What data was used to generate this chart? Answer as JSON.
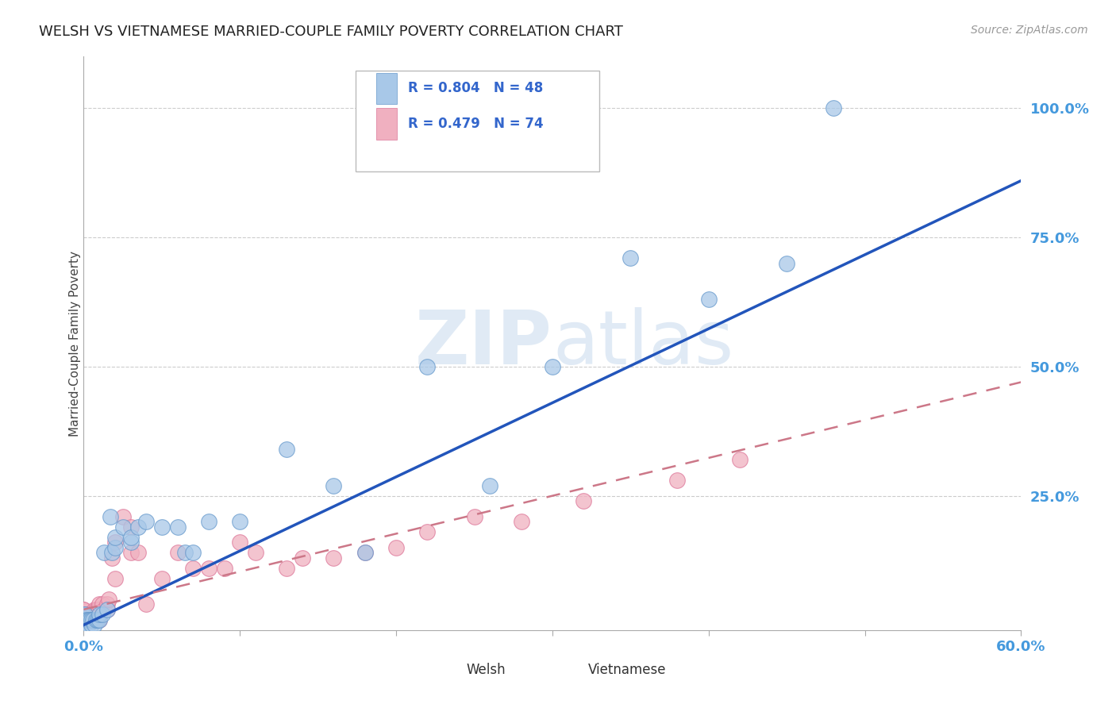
{
  "title": "WELSH VS VIETNAMESE MARRIED-COUPLE FAMILY POVERTY CORRELATION CHART",
  "source": "Source: ZipAtlas.com",
  "ylabel": "Married-Couple Family Poverty",
  "welsh_R": 0.804,
  "welsh_N": 48,
  "viet_R": 0.479,
  "viet_N": 74,
  "welsh_color": "#a8c8e8",
  "welsh_edge": "#6699cc",
  "viet_color": "#f0b0c0",
  "viet_edge": "#dd7799",
  "trend_blue": "#2255bb",
  "trend_pink": "#cc7788",
  "watermark_color": "#ccddef",
  "background_color": "#ffffff",
  "xlim": [
    0.0,
    0.6
  ],
  "ylim": [
    -0.01,
    1.1
  ],
  "welsh_x": [
    0.0,
    0.0,
    0.0,
    0.0,
    0.001,
    0.001,
    0.001,
    0.002,
    0.002,
    0.003,
    0.003,
    0.004,
    0.005,
    0.005,
    0.006,
    0.007,
    0.008,
    0.009,
    0.01,
    0.01,
    0.012,
    0.013,
    0.015,
    0.017,
    0.018,
    0.02,
    0.02,
    0.025,
    0.03,
    0.03,
    0.035,
    0.04,
    0.05,
    0.06,
    0.065,
    0.07,
    0.08,
    0.1,
    0.13,
    0.16,
    0.18,
    0.22,
    0.26,
    0.3,
    0.35,
    0.4,
    0.45,
    0.48
  ],
  "welsh_y": [
    0.0,
    0.005,
    0.01,
    0.02,
    0.0,
    0.01,
    0.02,
    0.0,
    0.01,
    0.0,
    0.01,
    0.01,
    0.0,
    0.01,
    0.01,
    0.0,
    0.01,
    0.01,
    0.01,
    0.02,
    0.02,
    0.14,
    0.03,
    0.21,
    0.14,
    0.15,
    0.17,
    0.19,
    0.16,
    0.17,
    0.19,
    0.2,
    0.19,
    0.19,
    0.14,
    0.14,
    0.2,
    0.2,
    0.34,
    0.27,
    0.14,
    0.5,
    0.27,
    0.5,
    0.71,
    0.63,
    0.7,
    1.0
  ],
  "viet_x": [
    0.0,
    0.0,
    0.0,
    0.0,
    0.0,
    0.0,
    0.0,
    0.0,
    0.001,
    0.001,
    0.001,
    0.001,
    0.001,
    0.001,
    0.002,
    0.002,
    0.002,
    0.002,
    0.002,
    0.003,
    0.003,
    0.003,
    0.003,
    0.004,
    0.004,
    0.004,
    0.005,
    0.005,
    0.005,
    0.005,
    0.006,
    0.006,
    0.007,
    0.007,
    0.007,
    0.008,
    0.008,
    0.009,
    0.009,
    0.01,
    0.01,
    0.01,
    0.01,
    0.012,
    0.013,
    0.015,
    0.015,
    0.016,
    0.018,
    0.02,
    0.02,
    0.025,
    0.03,
    0.03,
    0.035,
    0.04,
    0.05,
    0.06,
    0.07,
    0.08,
    0.09,
    0.1,
    0.11,
    0.13,
    0.14,
    0.16,
    0.18,
    0.2,
    0.22,
    0.25,
    0.28,
    0.32,
    0.38,
    0.42
  ],
  "viet_y": [
    0.0,
    0.0,
    0.01,
    0.01,
    0.02,
    0.02,
    0.03,
    0.03,
    0.0,
    0.0,
    0.01,
    0.01,
    0.02,
    0.02,
    0.0,
    0.01,
    0.01,
    0.02,
    0.02,
    0.0,
    0.01,
    0.01,
    0.02,
    0.01,
    0.02,
    0.02,
    0.01,
    0.01,
    0.02,
    0.02,
    0.01,
    0.02,
    0.01,
    0.02,
    0.03,
    0.02,
    0.03,
    0.02,
    0.03,
    0.01,
    0.02,
    0.03,
    0.04,
    0.04,
    0.03,
    0.04,
    0.03,
    0.05,
    0.13,
    0.09,
    0.16,
    0.21,
    0.14,
    0.19,
    0.14,
    0.04,
    0.09,
    0.14,
    0.11,
    0.11,
    0.11,
    0.16,
    0.14,
    0.11,
    0.13,
    0.13,
    0.14,
    0.15,
    0.18,
    0.21,
    0.2,
    0.24,
    0.28,
    0.32
  ],
  "welsh_line_x": [
    0.0,
    0.6
  ],
  "welsh_line_y": [
    0.0,
    0.86
  ],
  "viet_line_x": [
    0.0,
    0.6
  ],
  "viet_line_y": [
    0.03,
    0.47
  ]
}
